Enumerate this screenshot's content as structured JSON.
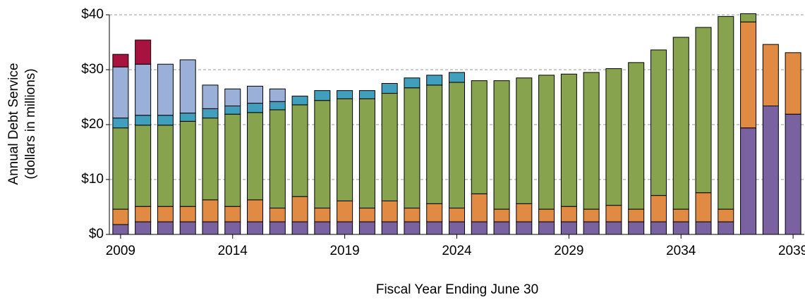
{
  "chart_data": {
    "type": "stacked_bar",
    "y_label": [
      "Annual Debt Service",
      "(dollars in millions)"
    ],
    "x_label": "Fiscal Year Ending June 30",
    "categories": [
      "2009",
      null,
      null,
      null,
      null,
      "2014",
      null,
      null,
      null,
      null,
      "2019",
      null,
      null,
      null,
      null,
      "2024",
      null,
      null,
      null,
      null,
      "2029",
      null,
      null,
      null,
      null,
      "2034",
      null,
      null,
      null,
      null,
      "2039"
    ],
    "ylim": [
      0,
      40
    ],
    "yticks": [
      {
        "value": 0,
        "label": "$0"
      },
      {
        "value": 10,
        "label": "$10"
      },
      {
        "value": 20,
        "label": "$20"
      },
      {
        "value": 30,
        "label": "$30"
      },
      {
        "value": 40,
        "label": "$40"
      }
    ],
    "grid": true,
    "series": [
      {
        "color": "#7a62a0",
        "values": [
          1.8,
          2.3,
          2.3,
          2.3,
          2.3,
          2.3,
          2.3,
          2.3,
          2.3,
          2.3,
          2.3,
          2.3,
          2.3,
          2.3,
          2.3,
          2.3,
          2.3,
          2.3,
          2.3,
          2.3,
          2.3,
          2.3,
          2.3,
          2.3,
          2.3,
          2.3,
          2.3,
          2.3,
          19.4,
          23.4,
          21.9
        ]
      },
      {
        "color": "#e08a44",
        "values": [
          2.8,
          2.8,
          2.8,
          2.8,
          4.0,
          2.8,
          4.0,
          2.5,
          4.6,
          2.5,
          3.8,
          2.5,
          3.8,
          2.5,
          3.3,
          2.5,
          5.1,
          2.3,
          3.3,
          2.3,
          2.8,
          2.3,
          3.0,
          2.3,
          4.8,
          2.3,
          5.3,
          2.3,
          19.3,
          11.2,
          11.2
        ]
      },
      {
        "color": "#87a34e",
        "values": [
          14.8,
          14.8,
          14.8,
          15.5,
          14.9,
          16.8,
          15.9,
          17.9,
          16.7,
          19.6,
          18.6,
          19.9,
          19.6,
          21.9,
          21.6,
          22.9,
          20.6,
          23.4,
          22.9,
          24.4,
          24.1,
          24.9,
          24.9,
          26.7,
          26.5,
          31.3,
          30.1,
          35.1,
          1.5,
          0,
          0
        ]
      },
      {
        "color": "#3f9fbd",
        "values": [
          1.8,
          1.8,
          1.8,
          1.5,
          1.7,
          1.5,
          1.7,
          1.5,
          1.6,
          1.8,
          1.5,
          1.5,
          1.8,
          1.8,
          1.8,
          1.8,
          0,
          0,
          0,
          0,
          0,
          0,
          0,
          0,
          0,
          0,
          0,
          0,
          0,
          0,
          0
        ]
      },
      {
        "color": "#9bb0d8",
        "values": [
          9.3,
          9.3,
          9.3,
          9.7,
          4.3,
          3.1,
          3.1,
          2.3,
          0,
          0,
          0,
          0,
          0,
          0,
          0,
          0,
          0,
          0,
          0,
          0,
          0,
          0,
          0,
          0,
          0,
          0,
          0,
          0,
          0,
          0,
          0
        ]
      },
      {
        "color": "#a8123e",
        "values": [
          2.3,
          4.4,
          0,
          0,
          0,
          0,
          0,
          0,
          0,
          0,
          0,
          0,
          0,
          0,
          0,
          0,
          0,
          0,
          0,
          0,
          0,
          0,
          0,
          0,
          0,
          0,
          0,
          0,
          0,
          0,
          0
        ]
      }
    ]
  }
}
